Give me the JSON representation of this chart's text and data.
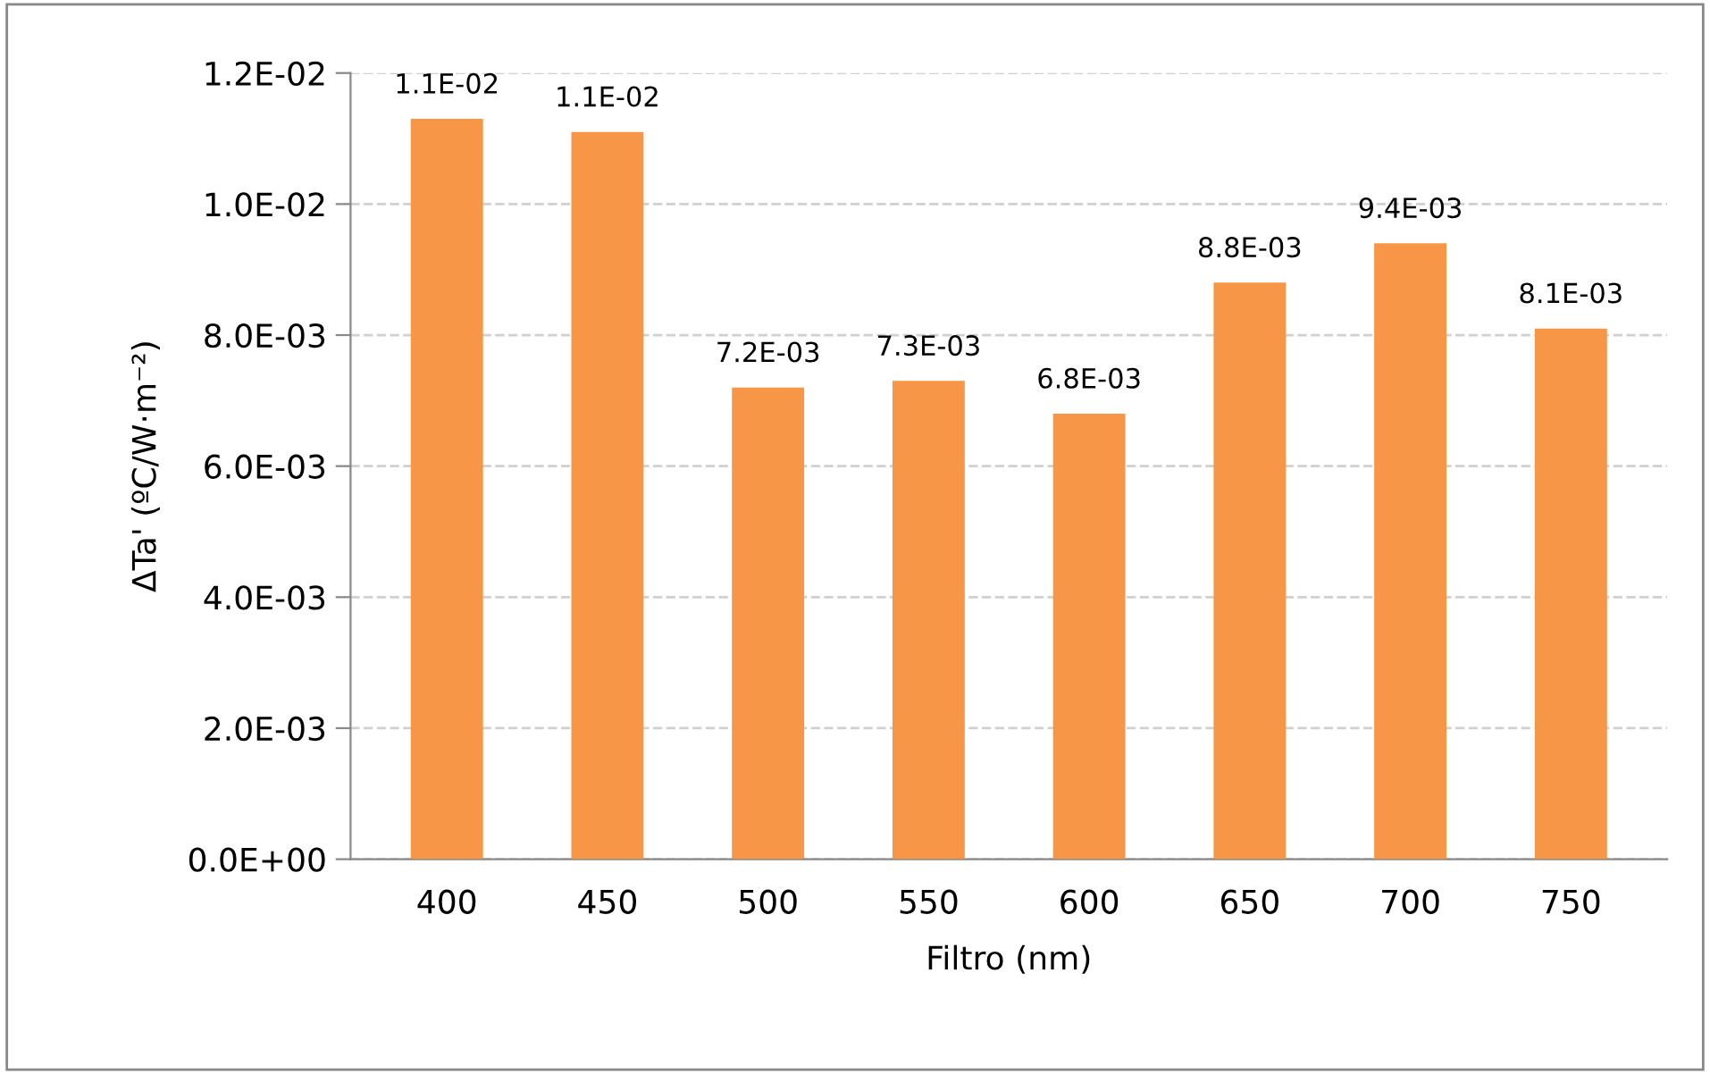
{
  "chart_data": {
    "type": "bar",
    "xlabel": "Filtro (nm)",
    "ylabel": "ΔTa' (ºC/W·m⁻²)",
    "categories": [
      "400",
      "450",
      "500",
      "550",
      "600",
      "650",
      "700",
      "750"
    ],
    "values": [
      0.0113,
      0.0111,
      0.0072,
      0.0073,
      0.0068,
      0.0088,
      0.0094,
      0.0081
    ],
    "value_labels": [
      "1.1E-02",
      "1.1E-02",
      "7.2E-03",
      "7.3E-03",
      "6.8E-03",
      "8.8E-03",
      "9.4E-03",
      "8.1E-03"
    ],
    "color": "#f79646",
    "ylim": [
      0,
      0.012
    ],
    "yticks": [
      {
        "value": 0,
        "label": "0.0E+00"
      },
      {
        "value": 0.002,
        "label": "2.0E-03"
      },
      {
        "value": 0.004,
        "label": "4.0E-03"
      },
      {
        "value": 0.006,
        "label": "6.0E-03"
      },
      {
        "value": 0.008,
        "label": "8.0E-03"
      },
      {
        "value": 0.01,
        "label": "1.0E-02"
      },
      {
        "value": 0.012,
        "label": "1.2E-02"
      }
    ],
    "grid": "y",
    "legend": false
  }
}
